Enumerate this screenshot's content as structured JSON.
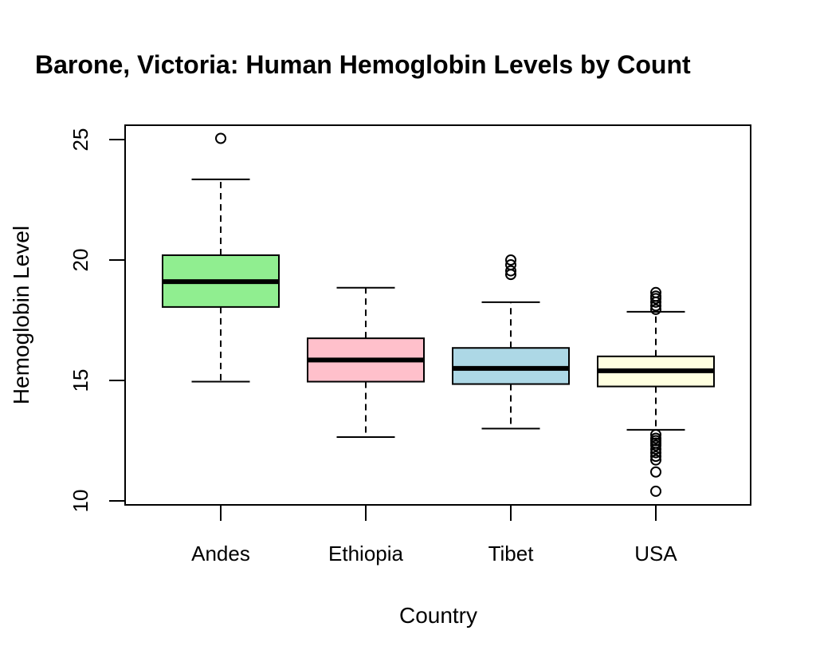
{
  "chart_data": {
    "type": "boxplot",
    "title": "Barone, Victoria: Human Hemoglobin Levels by Count",
    "xlabel": "Country",
    "ylabel": "Hemoglobin Level",
    "ylim": [
      10,
      25
    ],
    "yticks": [
      10,
      15,
      20,
      25
    ],
    "grid": false,
    "categories": [
      "Andes",
      "Ethiopia",
      "Tibet",
      "USA"
    ],
    "boxes": [
      {
        "category": "Andes",
        "color": "#90EE90",
        "whisker_low": 14.95,
        "q1": 18.05,
        "median": 19.1,
        "q3": 20.2,
        "whisker_high": 23.35,
        "outliers": [
          25.05
        ]
      },
      {
        "category": "Ethiopia",
        "color": "#FFC0CB",
        "whisker_low": 12.65,
        "q1": 14.95,
        "median": 15.85,
        "q3": 16.75,
        "whisker_high": 18.85,
        "outliers": []
      },
      {
        "category": "Tibet",
        "color": "#ADD8E6",
        "whisker_low": 13.0,
        "q1": 14.85,
        "median": 15.5,
        "q3": 16.35,
        "whisker_high": 18.25,
        "outliers": [
          19.4,
          19.55,
          19.8,
          20.0
        ]
      },
      {
        "category": "USA",
        "color": "#FFFFE0",
        "whisker_low": 12.95,
        "q1": 14.75,
        "median": 15.4,
        "q3": 16.0,
        "whisker_high": 17.85,
        "outliers": [
          18.65,
          18.5,
          18.4,
          18.25,
          18.1,
          17.95,
          12.75,
          12.6,
          12.5,
          12.4,
          12.3,
          12.15,
          12.0,
          11.85,
          11.7,
          11.2,
          10.4
        ]
      }
    ]
  }
}
